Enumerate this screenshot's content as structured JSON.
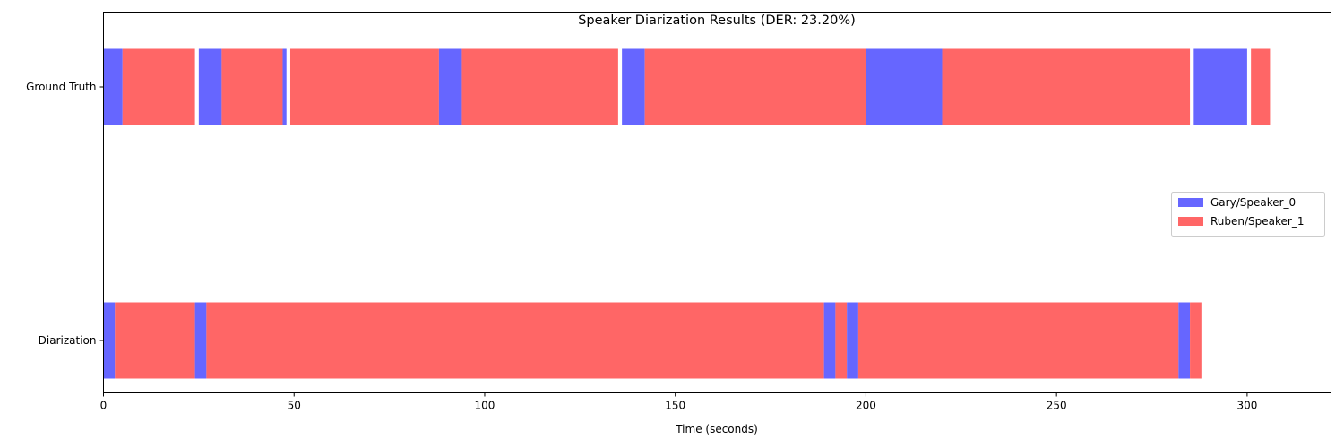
{
  "chart_data": {
    "type": "bar",
    "orientation": "horizontal-timeline",
    "title": "Speaker Diarization Results (DER: 23.20%)",
    "xlabel": "Time (seconds)",
    "ylabel": "",
    "xlim": [
      0,
      322
    ],
    "xticks": [
      0,
      50,
      100,
      150,
      200,
      250,
      300
    ],
    "rows": [
      "Ground Truth",
      "Diarization"
    ],
    "grid": false,
    "legend_position": "center-right",
    "series": [
      {
        "name": "Gary/Speaker_0",
        "color": "#6666ff"
      },
      {
        "name": "Ruben/Speaker_1",
        "color": "#ff6666"
      }
    ],
    "segments": [
      {
        "row": "Ground Truth",
        "speaker": 0,
        "start": 0,
        "end": 5
      },
      {
        "row": "Ground Truth",
        "speaker": 1,
        "start": 5,
        "end": 24
      },
      {
        "row": "Ground Truth",
        "speaker": 0,
        "start": 25,
        "end": 31
      },
      {
        "row": "Ground Truth",
        "speaker": 1,
        "start": 31,
        "end": 47
      },
      {
        "row": "Ground Truth",
        "speaker": 0,
        "start": 47,
        "end": 48
      },
      {
        "row": "Ground Truth",
        "speaker": 1,
        "start": 49,
        "end": 88
      },
      {
        "row": "Ground Truth",
        "speaker": 0,
        "start": 88,
        "end": 94
      },
      {
        "row": "Ground Truth",
        "speaker": 1,
        "start": 94,
        "end": 135
      },
      {
        "row": "Ground Truth",
        "speaker": 0,
        "start": 136,
        "end": 142
      },
      {
        "row": "Ground Truth",
        "speaker": 1,
        "start": 142,
        "end": 200
      },
      {
        "row": "Ground Truth",
        "speaker": 0,
        "start": 200,
        "end": 220
      },
      {
        "row": "Ground Truth",
        "speaker": 1,
        "start": 220,
        "end": 285
      },
      {
        "row": "Ground Truth",
        "speaker": 0,
        "start": 286,
        "end": 300
      },
      {
        "row": "Ground Truth",
        "speaker": 1,
        "start": 301,
        "end": 306
      },
      {
        "row": "Diarization",
        "speaker": 0,
        "start": 0,
        "end": 3
      },
      {
        "row": "Diarization",
        "speaker": 1,
        "start": 3,
        "end": 24
      },
      {
        "row": "Diarization",
        "speaker": 0,
        "start": 24,
        "end": 27
      },
      {
        "row": "Diarization",
        "speaker": 1,
        "start": 27,
        "end": 189
      },
      {
        "row": "Diarization",
        "speaker": 0,
        "start": 189,
        "end": 192
      },
      {
        "row": "Diarization",
        "speaker": 1,
        "start": 192,
        "end": 195
      },
      {
        "row": "Diarization",
        "speaker": 0,
        "start": 195,
        "end": 198
      },
      {
        "row": "Diarization",
        "speaker": 1,
        "start": 198,
        "end": 282
      },
      {
        "row": "Diarization",
        "speaker": 0,
        "start": 282,
        "end": 285
      },
      {
        "row": "Diarization",
        "speaker": 1,
        "start": 285,
        "end": 288
      }
    ]
  }
}
